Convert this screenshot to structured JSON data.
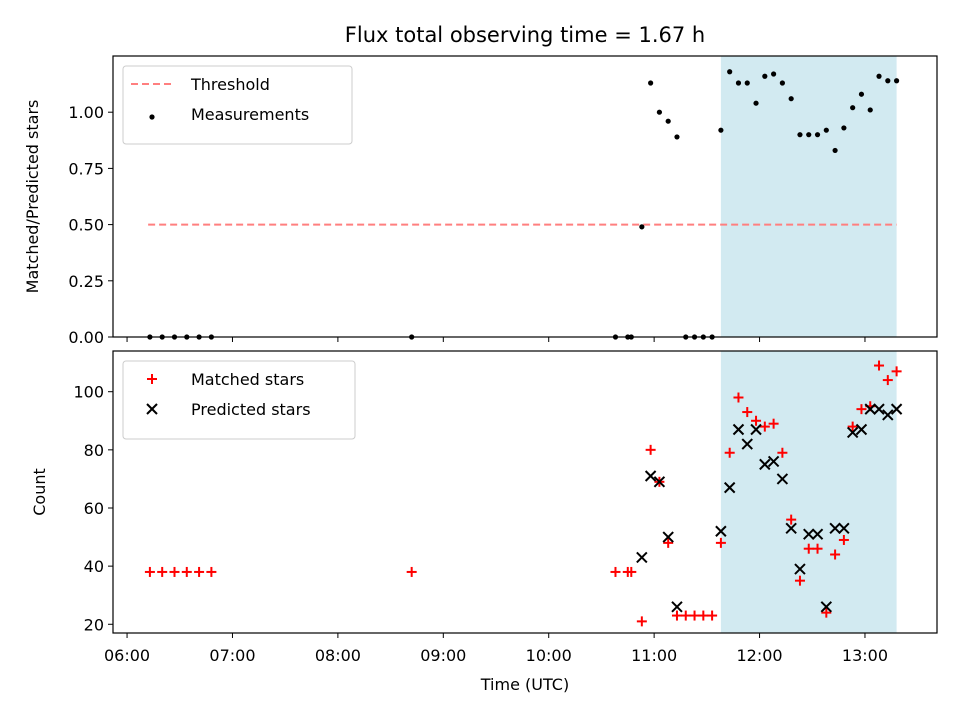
{
  "chart_data": {
    "type": "scatter",
    "title": "Flux total observing time = 1.67 h",
    "xlabel": "Time (UTC)",
    "x_unit": "hours UTC",
    "x_ticks": [
      "06:00",
      "07:00",
      "08:00",
      "09:00",
      "10:00",
      "11:00",
      "12:00",
      "13:00"
    ],
    "x_range": [
      "05:52",
      "13:41"
    ],
    "highlight_band": {
      "x_start": "11:38",
      "x_end": "13:18",
      "color": "#add8e6"
    },
    "colors": {
      "threshold": "#ff7f7f",
      "measurements": "#000000",
      "matched": "#ff0000",
      "predicted": "#000000",
      "band": "#add8e6"
    },
    "panels": [
      {
        "ylabel": "Matched/Predicted stars",
        "ylim": [
          0,
          1.25
        ],
        "y_ticks": [
          "0.00",
          "0.25",
          "0.50",
          "0.75",
          "1.00"
        ],
        "legend_position": "top-left",
        "threshold": {
          "name": "Threshold",
          "value": 0.5,
          "x_start": "06:12",
          "x_end": "13:18"
        },
        "series": [
          {
            "name": "Measurements",
            "marker": "dot",
            "points": [
              [
                "06:13",
                0
              ],
              [
                "06:20",
                0
              ],
              [
                "06:27",
                0
              ],
              [
                "06:34",
                0
              ],
              [
                "06:41",
                0
              ],
              [
                "06:48",
                0
              ],
              [
                "08:42",
                0
              ],
              [
                "10:38",
                0
              ],
              [
                "10:45",
                0
              ],
              [
                "10:47",
                0
              ],
              [
                "10:53",
                0.49
              ],
              [
                "10:58",
                1.13
              ],
              [
                "11:03",
                1.0
              ],
              [
                "11:08",
                0.96
              ],
              [
                "11:13",
                0.89
              ],
              [
                "11:18",
                0
              ],
              [
                "11:23",
                0
              ],
              [
                "11:28",
                0
              ],
              [
                "11:33",
                0
              ],
              [
                "11:38",
                0.92
              ],
              [
                "11:43",
                1.18
              ],
              [
                "11:48",
                1.13
              ],
              [
                "11:53",
                1.13
              ],
              [
                "11:58",
                1.04
              ],
              [
                "12:03",
                1.16
              ],
              [
                "12:08",
                1.17
              ],
              [
                "12:13",
                1.13
              ],
              [
                "12:18",
                1.06
              ],
              [
                "12:23",
                0.9
              ],
              [
                "12:28",
                0.9
              ],
              [
                "12:33",
                0.9
              ],
              [
                "12:38",
                0.92
              ],
              [
                "12:43",
                0.83
              ],
              [
                "12:48",
                0.93
              ],
              [
                "12:53",
                1.02
              ],
              [
                "12:58",
                1.08
              ],
              [
                "13:03",
                1.01
              ],
              [
                "13:08",
                1.16
              ],
              [
                "13:13",
                1.14
              ],
              [
                "13:18",
                1.14
              ]
            ]
          }
        ]
      },
      {
        "ylabel": "Count",
        "ylim": [
          17,
          114
        ],
        "y_ticks": [
          "20",
          "40",
          "60",
          "80",
          "100"
        ],
        "legend_position": "top-left",
        "series": [
          {
            "name": "Matched stars",
            "marker": "plus",
            "points": [
              [
                "06:13",
                38
              ],
              [
                "06:20",
                38
              ],
              [
                "06:27",
                38
              ],
              [
                "06:34",
                38
              ],
              [
                "06:41",
                38
              ],
              [
                "06:48",
                38
              ],
              [
                "08:42",
                38
              ],
              [
                "10:38",
                38
              ],
              [
                "10:45",
                38
              ],
              [
                "10:47",
                38
              ],
              [
                "10:53",
                21
              ],
              [
                "10:58",
                80
              ],
              [
                "11:03",
                69
              ],
              [
                "11:08",
                48
              ],
              [
                "11:13",
                23
              ],
              [
                "11:18",
                23
              ],
              [
                "11:23",
                23
              ],
              [
                "11:28",
                23
              ],
              [
                "11:33",
                23
              ],
              [
                "11:38",
                48
              ],
              [
                "11:43",
                79
              ],
              [
                "11:48",
                98
              ],
              [
                "11:53",
                93
              ],
              [
                "11:58",
                90
              ],
              [
                "12:03",
                88
              ],
              [
                "12:08",
                89
              ],
              [
                "12:13",
                79
              ],
              [
                "12:18",
                56
              ],
              [
                "12:23",
                35
              ],
              [
                "12:28",
                46
              ],
              [
                "12:33",
                46
              ],
              [
                "12:38",
                24
              ],
              [
                "12:43",
                44
              ],
              [
                "12:48",
                49
              ],
              [
                "12:53",
                88
              ],
              [
                "12:58",
                94
              ],
              [
                "13:03",
                95
              ],
              [
                "13:08",
                109
              ],
              [
                "13:13",
                104
              ],
              [
                "13:18",
                107
              ]
            ]
          },
          {
            "name": "Predicted stars",
            "marker": "x",
            "points": [
              [
                "10:53",
                43
              ],
              [
                "10:58",
                71
              ],
              [
                "11:03",
                69
              ],
              [
                "11:08",
                50
              ],
              [
                "11:13",
                26
              ],
              [
                "11:38",
                52
              ],
              [
                "11:43",
                67
              ],
              [
                "11:48",
                87
              ],
              [
                "11:53",
                82
              ],
              [
                "11:58",
                87
              ],
              [
                "12:03",
                75
              ],
              [
                "12:08",
                76
              ],
              [
                "12:13",
                70
              ],
              [
                "12:18",
                53
              ],
              [
                "12:23",
                39
              ],
              [
                "12:28",
                51
              ],
              [
                "12:33",
                51
              ],
              [
                "12:38",
                26
              ],
              [
                "12:43",
                53
              ],
              [
                "12:48",
                53
              ],
              [
                "12:53",
                86
              ],
              [
                "12:58",
                87
              ],
              [
                "13:03",
                94
              ],
              [
                "13:08",
                94
              ],
              [
                "13:13",
                92
              ],
              [
                "13:18",
                94
              ]
            ]
          }
        ]
      }
    ]
  }
}
